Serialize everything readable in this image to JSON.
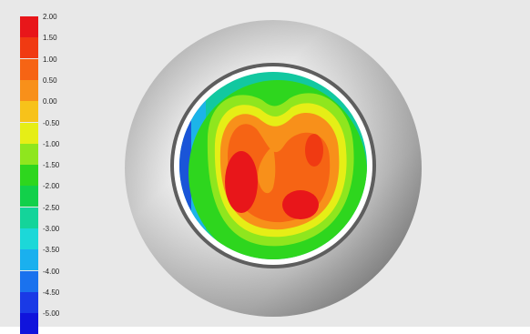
{
  "legend": {
    "ticks": [
      "2.00",
      "1.50",
      "1.00",
      "0.50",
      "0.00",
      "-0.50",
      "-1.00",
      "-1.50",
      "-2.00",
      "-2.50",
      "-3.00",
      "-3.50",
      "-4.00",
      "-4.50",
      "-5.00"
    ],
    "colors": [
      "#e8161a",
      "#f03a12",
      "#f66414",
      "#f8901a",
      "#f7c21a",
      "#e6ee16",
      "#8fe61e",
      "#2ed61e",
      "#12d04a",
      "#14d49a",
      "#1cd8d8",
      "#1ab0ee",
      "#1a72ee",
      "#1a3ae6",
      "#1014dc"
    ]
  },
  "colors": {
    "background": "#e8e8e8",
    "ring_light": "#f2f2f2",
    "ring_dark": "#8a8a8a",
    "inner_rim": "#ffffff"
  }
}
